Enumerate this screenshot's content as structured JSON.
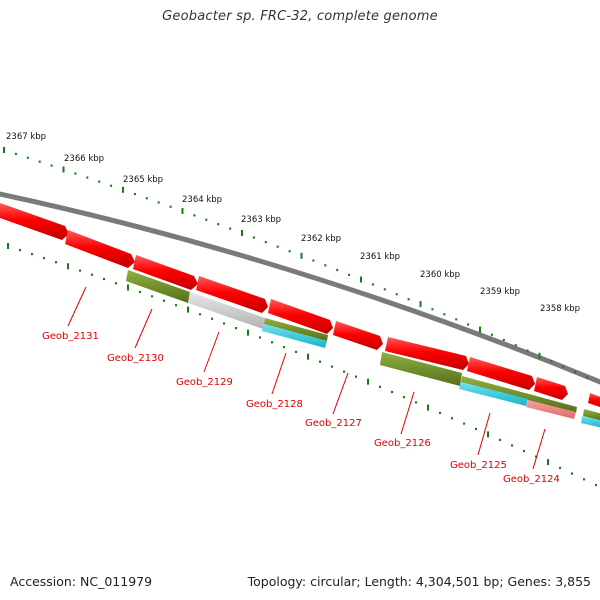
{
  "title": "Geobacter sp. FRC-32, complete genome",
  "footer": {
    "accession": "Accession: NC_011979",
    "summary": "Topology: circular; Length: 4,304,501 bp; Genes: 3,855"
  },
  "colors": {
    "backbone": "#7a7a7a",
    "cds_forward": "#ff0000",
    "tick": "#1a7a1a",
    "label": "#e00000",
    "olive": "#6b8e23",
    "cyan": "#2ec8d8",
    "gray_feature": "#c8c8c8",
    "pink_feature": "#f08080"
  },
  "scale_labels": [
    "2367 kbp",
    "2366 kbp",
    "2365 kbp",
    "2364 kbp",
    "2363 kbp",
    "2362 kbp",
    "2361 kbp",
    "2360 kbp",
    "2359 kbp",
    "2358 kbp"
  ],
  "gene_labels": [
    "Geob_2131",
    "Geob_2130",
    "Geob_2129",
    "Geob_2128",
    "Geob_2127",
    "Geob_2126",
    "Geob_2125",
    "Geob_2124"
  ]
}
